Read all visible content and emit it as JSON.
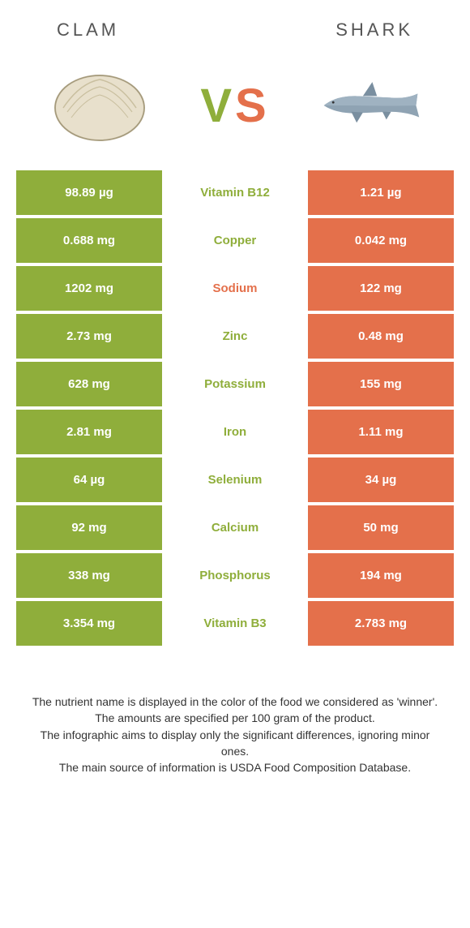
{
  "header": {
    "left_title": "CLAM",
    "right_title": "SHARK"
  },
  "vs": {
    "v_text": "V",
    "s_text": "S",
    "left_color": "#8fae3b",
    "right_color": "#e4704b"
  },
  "colors": {
    "left_bg": "#8fae3b",
    "right_bg": "#e4704b",
    "left_text": "#8fae3b",
    "right_text": "#e4704b"
  },
  "rows": [
    {
      "nutrient": "Vitamin B12",
      "left": "98.89 µg",
      "right": "1.21 µg",
      "winner": "left"
    },
    {
      "nutrient": "Copper",
      "left": "0.688 mg",
      "right": "0.042 mg",
      "winner": "left"
    },
    {
      "nutrient": "Sodium",
      "left": "1202 mg",
      "right": "122 mg",
      "winner": "right"
    },
    {
      "nutrient": "Zinc",
      "left": "2.73 mg",
      "right": "0.48 mg",
      "winner": "left"
    },
    {
      "nutrient": "Potassium",
      "left": "628 mg",
      "right": "155 mg",
      "winner": "left"
    },
    {
      "nutrient": "Iron",
      "left": "2.81 mg",
      "right": "1.11 mg",
      "winner": "left"
    },
    {
      "nutrient": "Selenium",
      "left": "64 µg",
      "right": "34 µg",
      "winner": "left"
    },
    {
      "nutrient": "Calcium",
      "left": "92 mg",
      "right": "50 mg",
      "winner": "left"
    },
    {
      "nutrient": "Phosphorus",
      "left": "338 mg",
      "right": "194 mg",
      "winner": "left"
    },
    {
      "nutrient": "Vitamin B3",
      "left": "3.354 mg",
      "right": "2.783 mg",
      "winner": "left"
    }
  ],
  "footer": {
    "line1": "The nutrient name is displayed in the color of the food we considered as 'winner'.",
    "line2": "The amounts are specified per 100 gram of the product.",
    "line3": "The infographic aims to display only the significant differences, ignoring minor ones.",
    "line4": "The main source of information is USDA Food Composition Database."
  }
}
